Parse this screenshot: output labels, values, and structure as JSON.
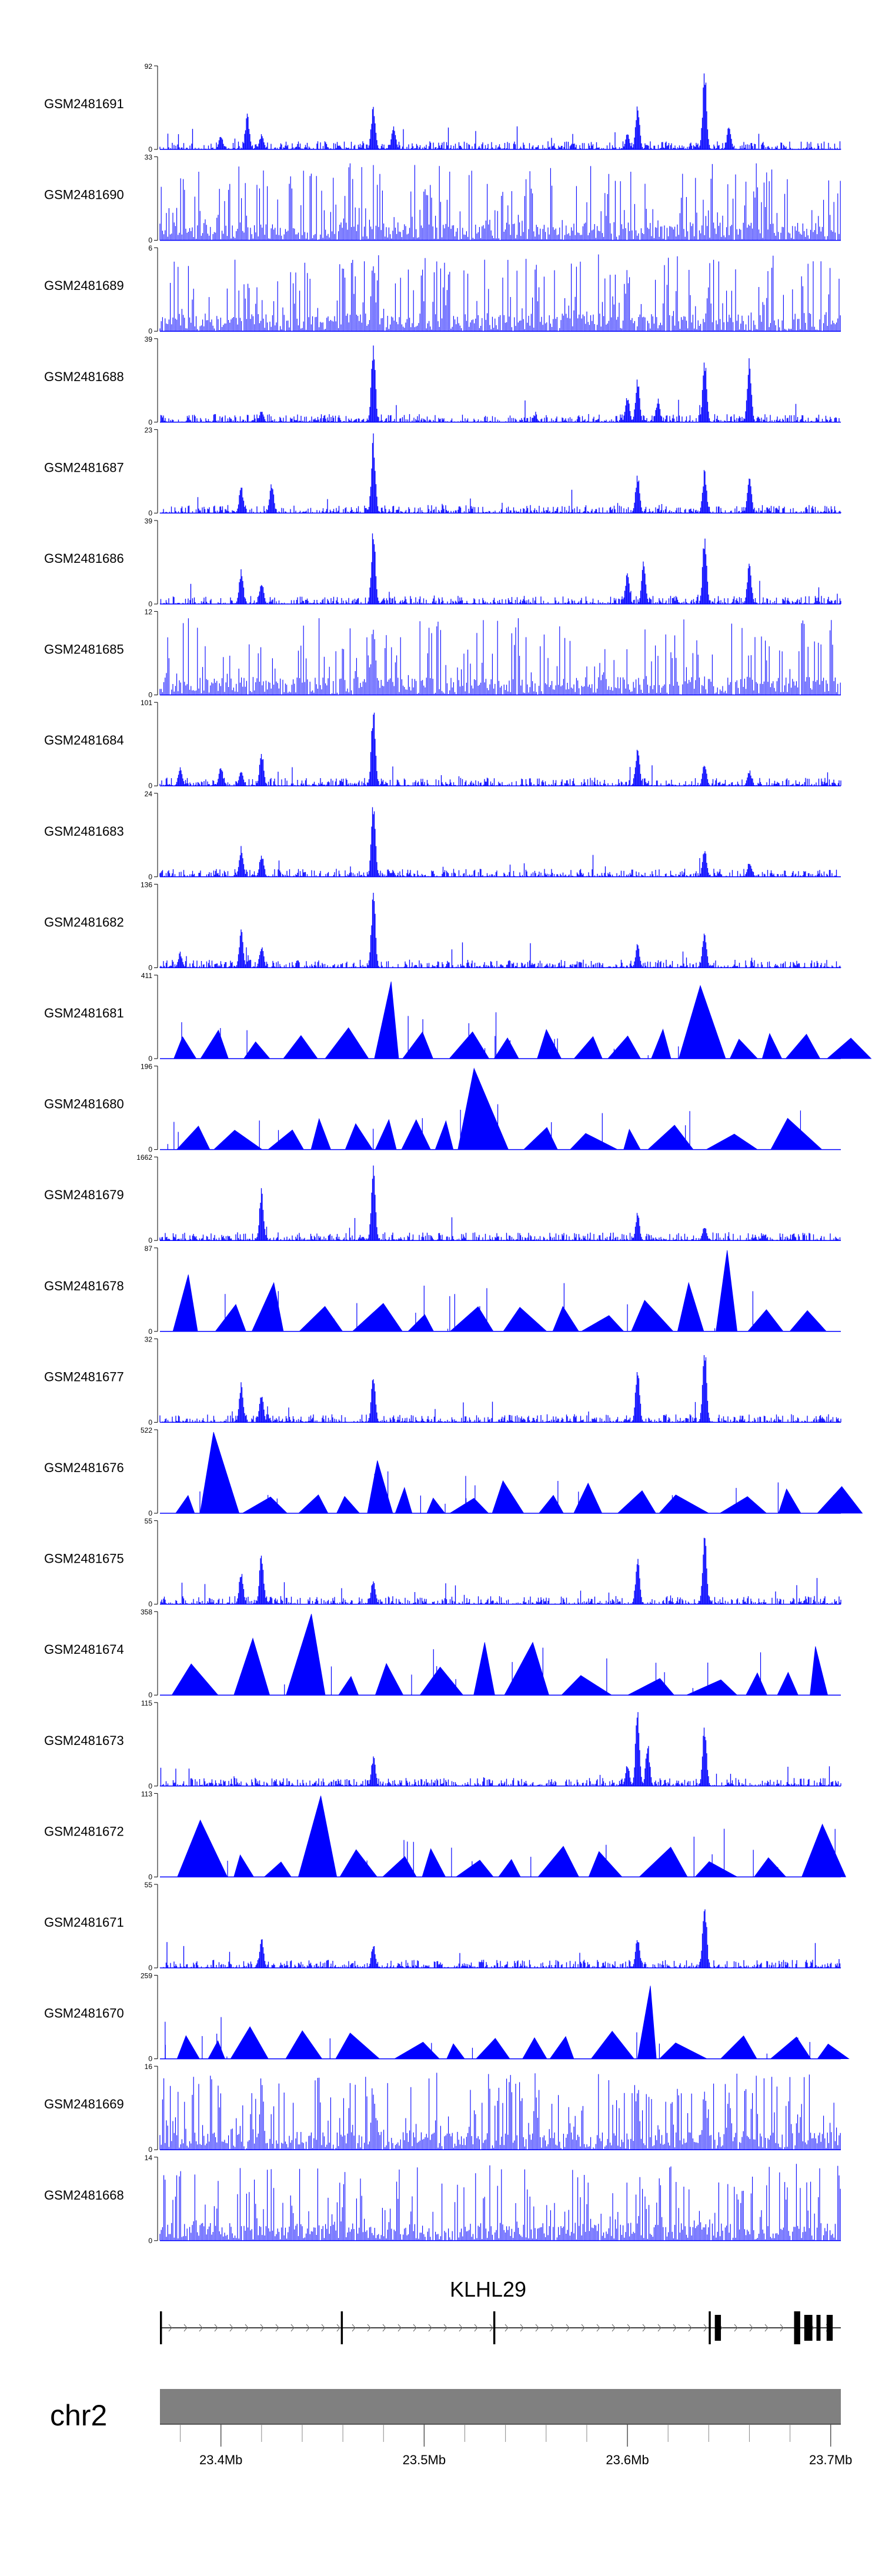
{
  "chart_data": {
    "type": "area",
    "x_range_mb": [
      23.37,
      23.705
    ],
    "tracks": [
      {
        "name": "GSM2481691",
        "ymax": "92",
        "ymin": "0",
        "style": "dense",
        "seed": 1,
        "peaks": [
          [
            23.413,
            0.45
          ],
          [
            23.42,
            0.2
          ],
          [
            23.475,
            0.6
          ],
          [
            23.485,
            0.3
          ],
          [
            23.605,
            0.55
          ],
          [
            23.638,
            1.0
          ],
          [
            23.65,
            0.3
          ],
          [
            23.4,
            0.18
          ],
          [
            23.6,
            0.2
          ]
        ]
      },
      {
        "name": "GSM2481690",
        "ymax": "33",
        "ymin": "0",
        "style": "sparsebars",
        "seed": 2,
        "peaks": []
      },
      {
        "name": "GSM2481689",
        "ymax": "6",
        "ymin": "0",
        "style": "sparsebars",
        "seed": 3,
        "peaks": [
          [
            23.475,
            1.0
          ],
          [
            23.6,
            0.7
          ],
          [
            23.64,
            0.7
          ]
        ]
      },
      {
        "name": "GSM2481688",
        "ymax": "39",
        "ymin": "0",
        "style": "dense",
        "seed": 4,
        "peaks": [
          [
            23.475,
            1.0
          ],
          [
            23.6,
            0.35
          ],
          [
            23.605,
            0.55
          ],
          [
            23.615,
            0.3
          ],
          [
            23.638,
            0.85
          ],
          [
            23.66,
            0.8
          ],
          [
            23.6,
            0.2
          ],
          [
            23.42,
            0.15
          ]
        ]
      },
      {
        "name": "GSM2481687",
        "ymax": "23",
        "ymin": "0",
        "style": "dense",
        "seed": 5,
        "peaks": [
          [
            23.475,
            1.0
          ],
          [
            23.41,
            0.35
          ],
          [
            23.425,
            0.4
          ],
          [
            23.605,
            0.5
          ],
          [
            23.638,
            0.55
          ],
          [
            23.66,
            0.5
          ]
        ]
      },
      {
        "name": "GSM2481686",
        "ymax": "39",
        "ymin": "0",
        "style": "dense",
        "seed": 6,
        "peaks": [
          [
            23.475,
            1.0
          ],
          [
            23.41,
            0.45
          ],
          [
            23.42,
            0.3
          ],
          [
            23.6,
            0.4
          ],
          [
            23.608,
            0.55
          ],
          [
            23.638,
            0.9
          ],
          [
            23.66,
            0.55
          ]
        ]
      },
      {
        "name": "GSM2481685",
        "ymax": "12",
        "ymin": "0",
        "style": "sparsebars",
        "seed": 7,
        "peaks": [
          [
            23.475,
            1.0
          ]
        ]
      },
      {
        "name": "GSM2481684",
        "ymax": "101",
        "ymin": "0",
        "style": "dense",
        "seed": 8,
        "peaks": [
          [
            23.475,
            1.0
          ],
          [
            23.38,
            0.25
          ],
          [
            23.4,
            0.25
          ],
          [
            23.41,
            0.2
          ],
          [
            23.42,
            0.45
          ],
          [
            23.605,
            0.5
          ],
          [
            23.638,
            0.3
          ],
          [
            23.66,
            0.2
          ]
        ]
      },
      {
        "name": "GSM2481683",
        "ymax": "24",
        "ymin": "0",
        "style": "dense",
        "seed": 9,
        "peaks": [
          [
            23.475,
            1.0
          ],
          [
            23.41,
            0.4
          ],
          [
            23.42,
            0.3
          ],
          [
            23.638,
            0.4
          ],
          [
            23.66,
            0.2
          ]
        ]
      },
      {
        "name": "GSM2481682",
        "ymax": "136",
        "ymin": "0",
        "style": "dense",
        "seed": 10,
        "peaks": [
          [
            23.475,
            1.0
          ],
          [
            23.38,
            0.2
          ],
          [
            23.41,
            0.5
          ],
          [
            23.42,
            0.3
          ],
          [
            23.605,
            0.3
          ],
          [
            23.638,
            0.5
          ]
        ]
      },
      {
        "name": "GSM2481681",
        "ymax": "411",
        "ymin": "0",
        "style": "tri",
        "seed": 11,
        "peaks": [
          [
            23.475,
            0.95
          ],
          [
            23.638,
            0.9
          ],
          [
            23.38,
            0.18
          ],
          [
            23.42,
            0.15
          ],
          [
            23.5,
            0.25
          ],
          [
            23.6,
            0.2
          ]
        ]
      },
      {
        "name": "GSM2481680",
        "ymax": "196",
        "ymin": "0",
        "style": "tri",
        "seed": 12,
        "peaks": [
          [
            23.525,
            1.0
          ],
          [
            23.45,
            0.38
          ],
          [
            23.395,
            0.3
          ],
          [
            23.68,
            0.28
          ]
        ]
      },
      {
        "name": "GSM2481679",
        "ymax": "1662",
        "ymin": "0",
        "style": "dense",
        "seed": 13,
        "peaks": [
          [
            23.475,
            1.0
          ],
          [
            23.42,
            0.65
          ],
          [
            23.605,
            0.35
          ],
          [
            23.638,
            0.2
          ]
        ]
      },
      {
        "name": "GSM2481678",
        "ymax": "87",
        "ymin": "0",
        "style": "tri",
        "seed": 14,
        "peaks": [
          [
            23.648,
            1.0
          ],
          [
            23.39,
            0.7
          ],
          [
            23.42,
            0.6
          ],
          [
            23.6,
            0.7
          ],
          [
            23.638,
            0.6
          ]
        ]
      },
      {
        "name": "GSM2481677",
        "ymax": "32",
        "ymin": "0",
        "style": "dense",
        "seed": 15,
        "peaks": [
          [
            23.638,
            1.0
          ],
          [
            23.605,
            0.7
          ],
          [
            23.475,
            0.6
          ],
          [
            23.41,
            0.5
          ],
          [
            23.42,
            0.4
          ]
        ]
      },
      {
        "name": "GSM2481676",
        "ymax": "522",
        "ymin": "0",
        "style": "tri",
        "seed": 16,
        "peaks": [
          [
            23.397,
            1.0
          ],
          [
            23.475,
            0.65
          ],
          [
            23.535,
            0.4
          ]
        ]
      },
      {
        "name": "GSM2481675",
        "ymax": "55",
        "ymin": "0",
        "style": "dense",
        "seed": 17,
        "peaks": [
          [
            23.638,
            0.9
          ],
          [
            23.605,
            0.6
          ],
          [
            23.42,
            0.7
          ],
          [
            23.41,
            0.45
          ],
          [
            23.475,
            0.35
          ]
        ]
      },
      {
        "name": "GSM2481674",
        "ymax": "358",
        "ymin": "0",
        "style": "tri",
        "seed": 18,
        "peaks": [
          [
            23.435,
            1.0
          ],
          [
            23.418,
            0.7
          ],
          [
            23.5,
            0.7
          ],
          [
            23.53,
            0.65
          ],
          [
            23.548,
            0.65
          ],
          [
            23.59,
            0.5
          ],
          [
            23.69,
            0.6
          ]
        ]
      },
      {
        "name": "GSM2481673",
        "ymax": "115",
        "ymin": "0",
        "style": "dense",
        "seed": 19,
        "peaks": [
          [
            23.605,
            1.0
          ],
          [
            23.61,
            0.55
          ],
          [
            23.638,
            0.8
          ],
          [
            23.475,
            0.4
          ],
          [
            23.6,
            0.3
          ]
        ]
      },
      {
        "name": "GSM2481672",
        "ymax": "113",
        "ymin": "0",
        "style": "tri",
        "seed": 20,
        "peaks": [
          [
            23.455,
            1.0
          ],
          [
            23.39,
            0.7
          ],
          [
            23.69,
            0.65
          ]
        ]
      },
      {
        "name": "GSM2481671",
        "ymax": "55",
        "ymin": "0",
        "style": "dense",
        "seed": 21,
        "peaks": [
          [
            23.638,
            0.9
          ],
          [
            23.42,
            0.4
          ],
          [
            23.605,
            0.4
          ],
          [
            23.475,
            0.3
          ]
        ]
      },
      {
        "name": "GSM2481670",
        "ymax": "259",
        "ymin": "0",
        "style": "tri",
        "seed": 22,
        "peaks": [
          [
            23.67,
            1.0
          ],
          [
            23.605,
            0.9
          ]
        ]
      },
      {
        "name": "GSM2481669",
        "ymax": "16",
        "ymin": "0",
        "style": "sparsebars",
        "seed": 23,
        "peaks": [
          [
            23.42,
            0.95
          ],
          [
            23.475,
            0.85
          ],
          [
            23.605,
            0.85
          ],
          [
            23.638,
            0.75
          ],
          [
            23.65,
            0.8
          ]
        ]
      },
      {
        "name": "GSM2481668",
        "ymax": "14",
        "ymin": "0",
        "style": "sparsebars",
        "seed": 24,
        "peaks": []
      }
    ],
    "gene": {
      "name": "KLHL29",
      "strand": "+",
      "start_mb": 23.37,
      "end_mb": 23.705,
      "exons_mb": [
        [
          23.37,
          23.371
        ],
        [
          23.459,
          23.46
        ],
        [
          23.534,
          23.535
        ],
        [
          23.64,
          23.641
        ],
        [
          23.643,
          23.646
        ],
        [
          23.682,
          23.685
        ],
        [
          23.687,
          23.691
        ],
        [
          23.693,
          23.695
        ],
        [
          23.698,
          23.701
        ]
      ]
    },
    "chromosome": "chr2",
    "axis_ticks": [
      {
        "mb": 23.4,
        "label": "23.4Mb"
      },
      {
        "mb": 23.5,
        "label": "23.5Mb"
      },
      {
        "mb": 23.6,
        "label": "23.6Mb"
      },
      {
        "mb": 23.7,
        "label": "23.7Mb"
      }
    ],
    "colors": {
      "signal": "#0000ff",
      "gene": "#000000",
      "ideogram": "#808080"
    }
  }
}
